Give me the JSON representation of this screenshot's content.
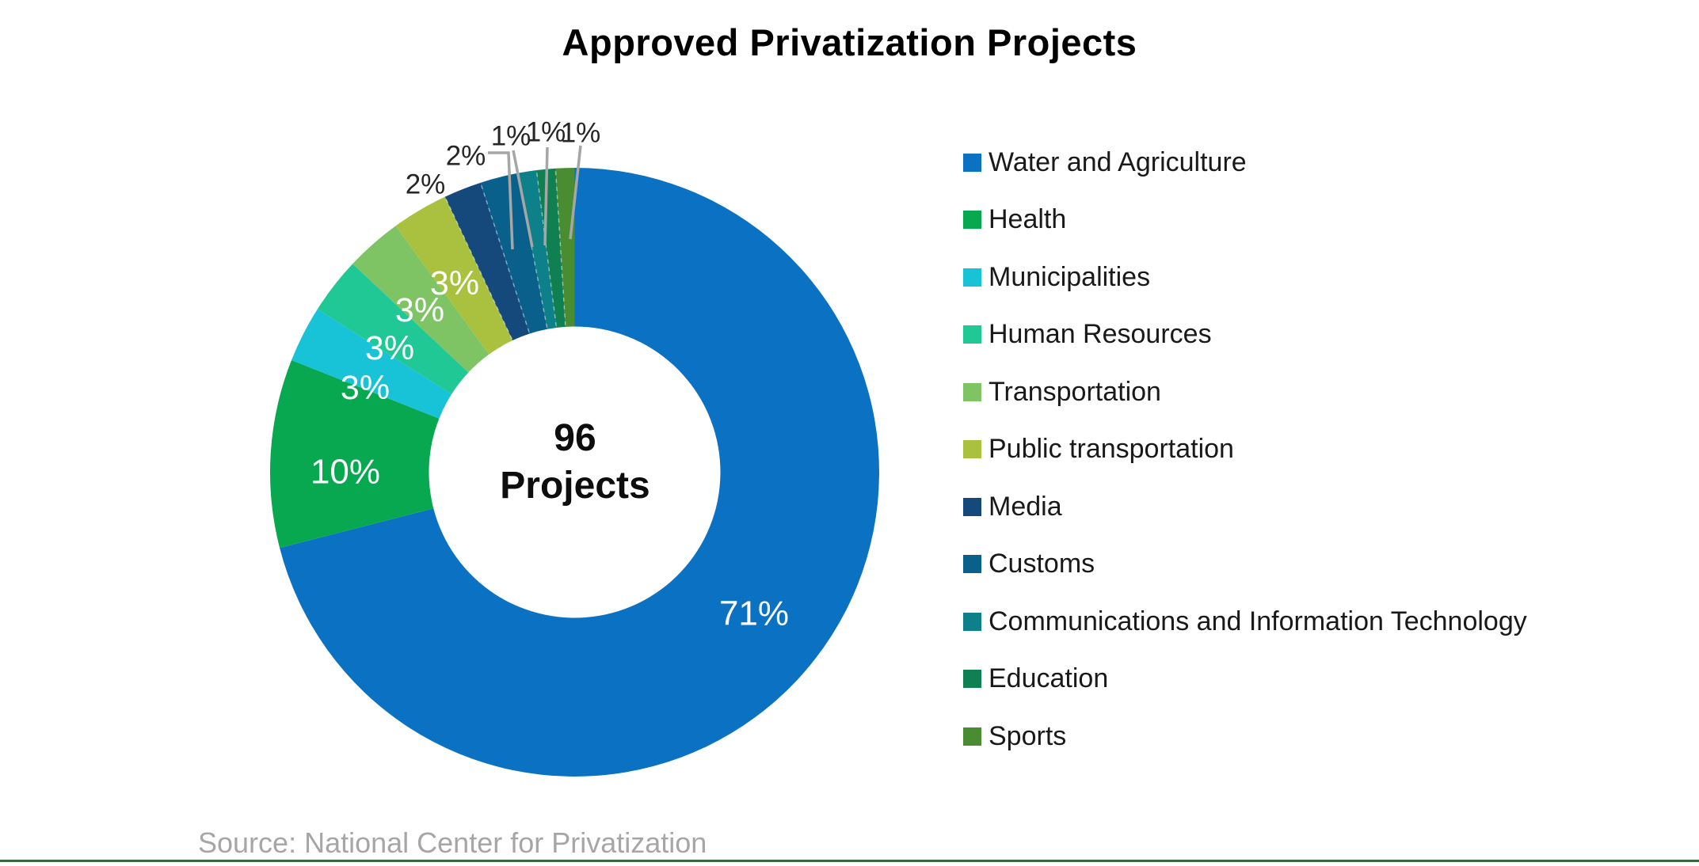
{
  "title": "Approved Privatization Projects",
  "source_note": "Source: National Center for Privatization",
  "center_label": {
    "value": "96",
    "unit": "Projects"
  },
  "chart_data": {
    "type": "pie",
    "subtype": "donut",
    "title": "Approved Privatization Projects",
    "center_text": "96 Projects",
    "unit": "%",
    "start_angle_deg": 0,
    "direction": "clockwise",
    "legend_position": "right",
    "categories": [
      "Water and Agriculture",
      "Health",
      "Municipalities",
      "Human Resources",
      "Transportation",
      "Public transportation",
      "Media",
      "Customs",
      "Communications and Information Technology",
      "Education",
      "Sports"
    ],
    "values": [
      71,
      10,
      3,
      3,
      3,
      3,
      2,
      2,
      1,
      1,
      1
    ],
    "data_labels": [
      "71%",
      "10%",
      "3%",
      "3%",
      "3%",
      "3%",
      "2%",
      "2%",
      "1%",
      "1%",
      "1%"
    ],
    "colors": [
      "#0B72C3",
      "#07A850",
      "#18C3D8",
      "#1FC895",
      "#7EC465",
      "#A9C13E",
      "#16497B",
      "#09608A",
      "#0D8089",
      "#108052",
      "#498C31"
    ]
  },
  "styles": {
    "inside_label_color": "#FFFFFF",
    "outside_label_color": "#262626",
    "leader_line_color": "#A6A6A6",
    "source_color": "#A6A6A6",
    "bottom_rule_color": "#35693E"
  }
}
